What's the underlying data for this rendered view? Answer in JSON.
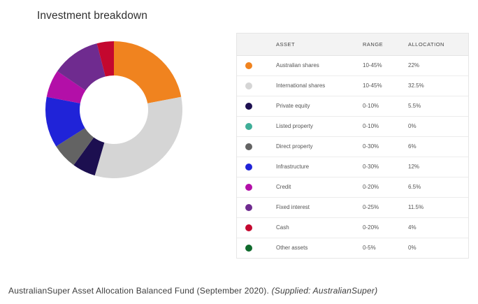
{
  "title": "Investment breakdown",
  "table": {
    "headers": {
      "asset": "ASSET",
      "range": "RANGE",
      "allocation": "ALLOCATION"
    },
    "rows": [
      {
        "asset": "Australian shares",
        "range": "10-45%",
        "allocation": "22%",
        "color": "#f0831f"
      },
      {
        "asset": "International shares",
        "range": "10-45%",
        "allocation": "32.5%",
        "color": "#d5d5d5"
      },
      {
        "asset": "Private equity",
        "range": "0-10%",
        "allocation": "5.5%",
        "color": "#1c0f50"
      },
      {
        "asset": "Listed property",
        "range": "0-10%",
        "allocation": "0%",
        "color": "#3fae98"
      },
      {
        "asset": "Direct property",
        "range": "0-30%",
        "allocation": "6%",
        "color": "#636363"
      },
      {
        "asset": "Infrastructure",
        "range": "0-30%",
        "allocation": "12%",
        "color": "#2023d8"
      },
      {
        "asset": "Credit",
        "range": "0-20%",
        "allocation": "6.5%",
        "color": "#b30fa8"
      },
      {
        "asset": "Fixed interest",
        "range": "0-25%",
        "allocation": "11.5%",
        "color": "#6f2b8f"
      },
      {
        "asset": "Cash",
        "range": "0-20%",
        "allocation": "4%",
        "color": "#c4082f"
      },
      {
        "asset": "Other assets",
        "range": "0-5%",
        "allocation": "0%",
        "color": "#0f6a2c"
      }
    ]
  },
  "caption": {
    "text": "AustralianSuper Asset Allocation Balanced Fund (September 2020). ",
    "source": "(Supplied: AustralianSuper)"
  },
  "chart_data": {
    "type": "pie",
    "title": "Investment breakdown",
    "donut": true,
    "categories": [
      "Australian shares",
      "International shares",
      "Private equity",
      "Listed property",
      "Direct property",
      "Infrastructure",
      "Credit",
      "Fixed interest",
      "Cash",
      "Other assets"
    ],
    "values": [
      22,
      32.5,
      5.5,
      0,
      6,
      12,
      6.5,
      11.5,
      4,
      0
    ],
    "colors": [
      "#f0831f",
      "#d5d5d5",
      "#1c0f50",
      "#3fae98",
      "#636363",
      "#2023d8",
      "#b30fa8",
      "#6f2b8f",
      "#c4082f",
      "#0f6a2c"
    ],
    "legend": "table-right"
  }
}
